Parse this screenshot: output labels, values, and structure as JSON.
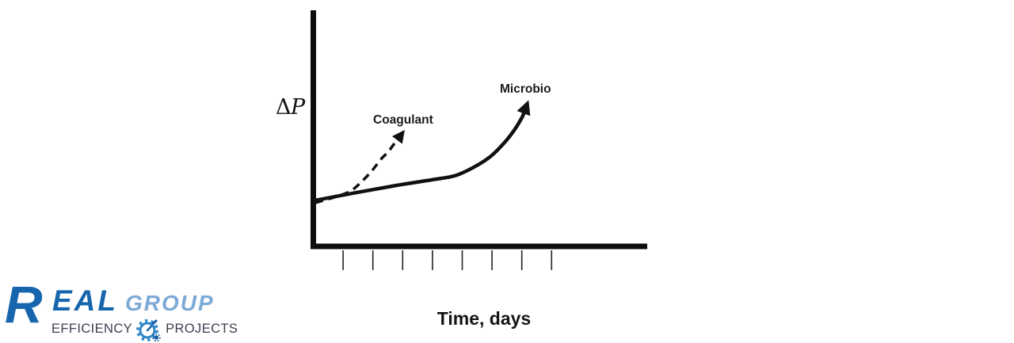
{
  "chart": {
    "ylabel_delta": "Δ",
    "ylabel_p": "P",
    "xlabel": "Time, days",
    "label_coagulant": "Coagulant",
    "label_microbio": "Microbio"
  },
  "chart_data": {
    "type": "line",
    "title": "",
    "xlabel": "Time, days",
    "ylabel": "ΔP",
    "axes_color": "#0d0d0d",
    "grid": false,
    "legend": "inline-annotations",
    "x_ticks": {
      "count": 8,
      "labeled": false,
      "first": 1,
      "step": 1
    },
    "x_range_days": [
      0,
      11.2
    ],
    "y_range_norm": [
      0,
      1
    ],
    "note": "Qualitative sketch: pressure drop (ΔP) vs time in days; no numeric tick labels shown",
    "series": [
      {
        "name": "Microbio",
        "line_style": "solid",
        "arrow_end": true,
        "color": "#111111",
        "points": [
          [
            0.07,
            0.195
          ],
          [
            1.45,
            0.228
          ],
          [
            2.78,
            0.258
          ],
          [
            3.98,
            0.282
          ],
          [
            4.77,
            0.3
          ],
          [
            5.44,
            0.339
          ],
          [
            5.97,
            0.383
          ],
          [
            6.42,
            0.44
          ],
          [
            6.77,
            0.497
          ],
          [
            7.01,
            0.547
          ],
          [
            7.11,
            0.58
          ]
        ]
      },
      {
        "name": "Coagulant",
        "line_style": "dashed",
        "arrow_end": true,
        "color": "#111111",
        "points": [
          [
            0.07,
            0.185
          ],
          [
            0.78,
            0.211
          ],
          [
            1.26,
            0.235
          ],
          [
            1.66,
            0.279
          ],
          [
            1.98,
            0.322
          ],
          [
            2.27,
            0.369
          ],
          [
            2.51,
            0.4
          ],
          [
            2.7,
            0.432
          ],
          [
            2.89,
            0.463
          ]
        ]
      }
    ]
  },
  "logo": {
    "brand_initial": "R",
    "brand_rest": "EAL",
    "brand_suffix": "GROUP",
    "tagline_left": "EFFICIENCY",
    "tagline_right": "PROJECTS",
    "icon": "gear-stopwatch-icon",
    "colors": {
      "real_blue": "#1766ad",
      "group_blue": "#7ca9d6",
      "tagline_gray": "#3a4050",
      "icon_blue": "#2e86c8",
      "icon_dark_blue": "#1a5fa0"
    }
  }
}
